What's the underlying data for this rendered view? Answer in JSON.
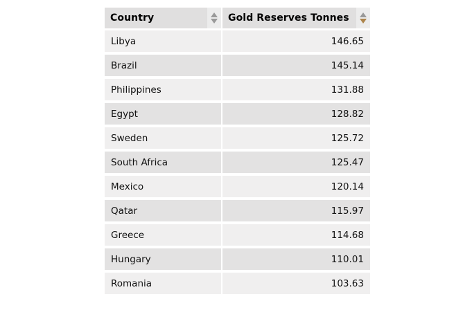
{
  "table": {
    "columns": [
      {
        "label": "Country",
        "sort_state": "none"
      },
      {
        "label": "Gold Reserves Tonnes",
        "sort_state": "descending"
      }
    ],
    "rows": [
      {
        "country": "Libya",
        "value": "146.65"
      },
      {
        "country": "Brazil",
        "value": "145.14"
      },
      {
        "country": "Philippines",
        "value": "131.88"
      },
      {
        "country": "Egypt",
        "value": "128.82"
      },
      {
        "country": "Sweden",
        "value": "125.72"
      },
      {
        "country": "South Africa",
        "value": "125.47"
      },
      {
        "country": "Mexico",
        "value": "120.14"
      },
      {
        "country": "Qatar",
        "value": "115.97"
      },
      {
        "country": "Greece",
        "value": "114.68"
      },
      {
        "country": "Hungary",
        "value": "110.01"
      },
      {
        "country": "Romania",
        "value": "103.63"
      }
    ]
  },
  "colors": {
    "sort_arrow_inactive": "#999999",
    "sort_arrow_active": "#ad844c",
    "header_bg": "#e0dfdf",
    "row_light_bg": "#f0efef",
    "row_dark_bg": "#e3e2e2"
  }
}
